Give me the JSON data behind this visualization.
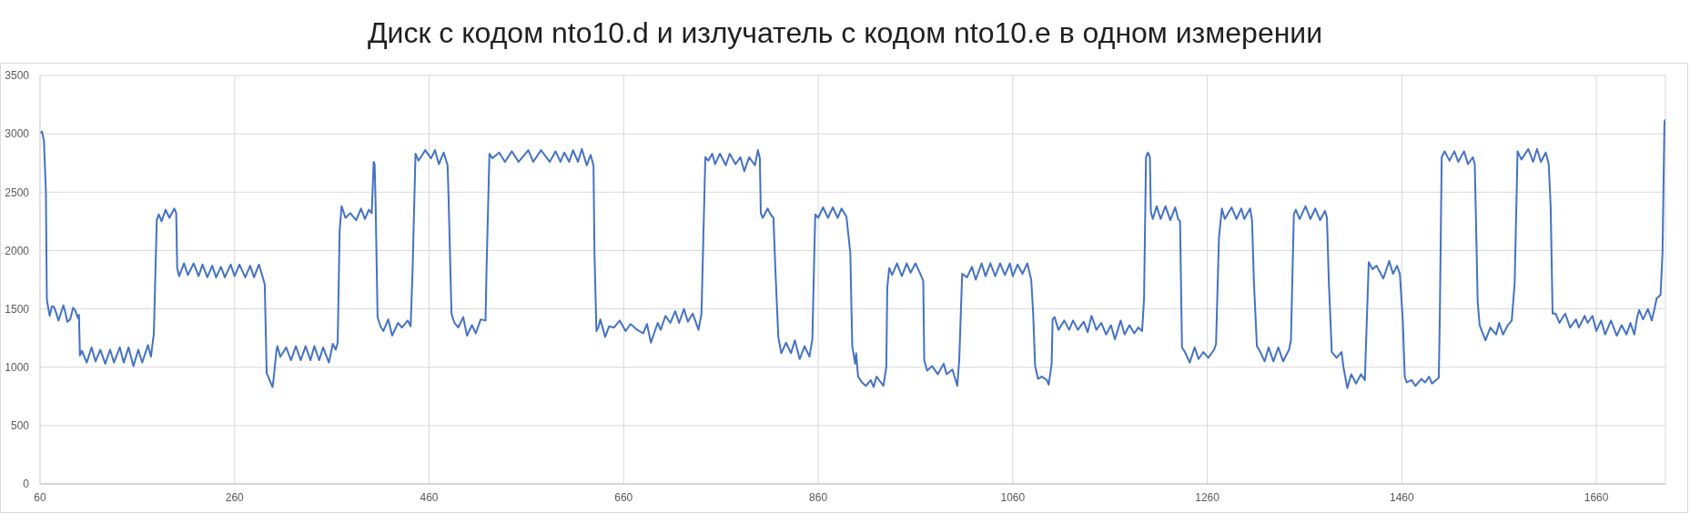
{
  "chart_data": {
    "type": "line",
    "title": "Диск с кодом nto10.d и излучатель с кодом nto10.e в одном измерении",
    "x": [
      60,
      62,
      64,
      66,
      67,
      69,
      70,
      72,
      74,
      76,
      79,
      84,
      86,
      88,
      91,
      94,
      96,
      99,
      100,
      101,
      103,
      108,
      113,
      117,
      122,
      127,
      132,
      136,
      142,
      146,
      151,
      156,
      161,
      165,
      171,
      174,
      177,
      180,
      182,
      185,
      189,
      193,
      198,
      200,
      201,
      203,
      208,
      212,
      218,
      223,
      227,
      232,
      237,
      241,
      246,
      250,
      256,
      260,
      265,
      271,
      276,
      280,
      285,
      289,
      291,
      293,
      296,
      299,
      300,
      303,
      304,
      307,
      313,
      318,
      323,
      328,
      333,
      338,
      342,
      347,
      351,
      357,
      361,
      364,
      366,
      368,
      370,
      374,
      379,
      385,
      390,
      394,
      398,
      401,
      403,
      404,
      405,
      407,
      410,
      413,
      418,
      422,
      428,
      432,
      438,
      441,
      443,
      446,
      449,
      453,
      456,
      462,
      466,
      470,
      475,
      479,
      480,
      483,
      486,
      490,
      495,
      499,
      504,
      508,
      513,
      518,
      519,
      522,
      525,
      532,
      538,
      545,
      552,
      562,
      567,
      575,
      584,
      590,
      595,
      599,
      604,
      608,
      613,
      617,
      622,
      626,
      629,
      630,
      632,
      634,
      636,
      641,
      645,
      650,
      656,
      662,
      667,
      674,
      680,
      684,
      688,
      695,
      698,
      703,
      708,
      713,
      717,
      722,
      726,
      731,
      737,
      740,
      742,
      744,
      747,
      751,
      754,
      759,
      765,
      769,
      775,
      780,
      784,
      789,
      795,
      798,
      800,
      801,
      803,
      808,
      811,
      814,
      816,
      819,
      822,
      827,
      832,
      836,
      841,
      846,
      851,
      854,
      856,
      857,
      860,
      865,
      870,
      875,
      880,
      884,
      889,
      893,
      895,
      898,
      899,
      901,
      905,
      909,
      914,
      917,
      920,
      927,
      930,
      931,
      933,
      936,
      941,
      946,
      951,
      955,
      960,
      965,
      968,
      969,
      972,
      977,
      983,
      989,
      992,
      998,
      1003,
      1005,
      1008,
      1013,
      1018,
      1022,
      1028,
      1032,
      1037,
      1042,
      1047,
      1052,
      1057,
      1060,
      1065,
      1070,
      1075,
      1079,
      1081,
      1083,
      1086,
      1090,
      1095,
      1097,
      1100,
      1101,
      1103,
      1107,
      1113,
      1118,
      1122,
      1127,
      1133,
      1137,
      1141,
      1146,
      1151,
      1156,
      1161,
      1165,
      1171,
      1175,
      1180,
      1185,
      1189,
      1193,
      1195,
      1197,
      1199,
      1201,
      1202,
      1204,
      1208,
      1212,
      1217,
      1222,
      1227,
      1230,
      1232,
      1234,
      1237,
      1242,
      1247,
      1251,
      1256,
      1261,
      1267,
      1269,
      1272,
      1275,
      1278,
      1285,
      1290,
      1295,
      1298,
      1304,
      1306,
      1308,
      1311,
      1314,
      1319,
      1323,
      1328,
      1333,
      1338,
      1344,
      1346,
      1349,
      1351,
      1355,
      1361,
      1366,
      1371,
      1376,
      1381,
      1383,
      1385,
      1388,
      1393,
      1398,
      1400,
      1404,
      1408,
      1413,
      1418,
      1422,
      1424,
      1426,
      1430,
      1434,
      1441,
      1447,
      1451,
      1455,
      1458,
      1461,
      1463,
      1465,
      1470,
      1474,
      1480,
      1484,
      1488,
      1491,
      1498,
      1499,
      1501,
      1504,
      1509,
      1514,
      1518,
      1524,
      1528,
      1533,
      1535,
      1538,
      1540,
      1546,
      1551,
      1557,
      1560,
      1564,
      1569,
      1573,
      1576,
      1579,
      1583,
      1590,
      1595,
      1599,
      1603,
      1608,
      1611,
      1613,
      1615,
      1618,
      1622,
      1628,
      1633,
      1639,
      1642,
      1648,
      1651,
      1656,
      1660,
      1665,
      1669,
      1675,
      1681,
      1686,
      1691,
      1695,
      1699,
      1702,
      1704,
      1708,
      1713,
      1717,
      1720,
      1722,
      1726,
      1728,
      1730,
      1731
    ],
    "values": [
      3010,
      3020,
      2940,
      2510,
      1580,
      1480,
      1440,
      1520,
      1520,
      1480,
      1400,
      1530,
      1470,
      1390,
      1410,
      1510,
      1490,
      1420,
      1450,
      1100,
      1140,
      1040,
      1170,
      1050,
      1150,
      1030,
      1150,
      1040,
      1170,
      1040,
      1170,
      1010,
      1150,
      1040,
      1190,
      1090,
      1290,
      2260,
      2310,
      2250,
      2350,
      2280,
      2360,
      2320,
      1850,
      1780,
      1890,
      1790,
      1890,
      1780,
      1880,
      1770,
      1870,
      1770,
      1860,
      1770,
      1880,
      1780,
      1880,
      1770,
      1870,
      1770,
      1880,
      1770,
      1710,
      950,
      890,
      830,
      890,
      1140,
      1180,
      1090,
      1170,
      1060,
      1180,
      1060,
      1180,
      1060,
      1180,
      1060,
      1170,
      1040,
      1200,
      1150,
      1210,
      2170,
      2380,
      2280,
      2320,
      2260,
      2360,
      2270,
      2350,
      2320,
      2760,
      2740,
      2390,
      1430,
      1350,
      1310,
      1410,
      1270,
      1380,
      1340,
      1400,
      1350,
      1830,
      2830,
      2770,
      2820,
      2860,
      2790,
      2860,
      2740,
      2840,
      2730,
      2450,
      1460,
      1380,
      1340,
      1430,
      1270,
      1360,
      1290,
      1410,
      1400,
      1830,
      2830,
      2790,
      2840,
      2760,
      2850,
      2760,
      2860,
      2760,
      2860,
      2760,
      2850,
      2760,
      2840,
      2760,
      2860,
      2760,
      2870,
      2730,
      2820,
      2730,
      1980,
      1310,
      1340,
      1410,
      1260,
      1350,
      1340,
      1400,
      1310,
      1370,
      1320,
      1290,
      1370,
      1210,
      1380,
      1320,
      1440,
      1380,
      1480,
      1380,
      1500,
      1390,
      1460,
      1320,
      1460,
      2140,
      2800,
      2770,
      2830,
      2740,
      2830,
      2730,
      2830,
      2740,
      2800,
      2680,
      2800,
      2730,
      2860,
      2790,
      2320,
      2280,
      2360,
      2310,
      2280,
      1830,
      1260,
      1120,
      1210,
      1120,
      1230,
      1070,
      1180,
      1090,
      1240,
      1980,
      2310,
      2280,
      2370,
      2280,
      2370,
      2280,
      2360,
      2290,
      1980,
      1180,
      1030,
      1120,
      920,
      870,
      840,
      890,
      830,
      920,
      840,
      1000,
      1680,
      1850,
      1790,
      1890,
      1780,
      1890,
      1810,
      1890,
      1800,
      1740,
      1060,
      970,
      1010,
      940,
      1030,
      940,
      980,
      840,
      1060,
      1800,
      1770,
      1860,
      1750,
      1890,
      1780,
      1890,
      1780,
      1890,
      1790,
      1890,
      1780,
      1880,
      1800,
      1890,
      1750,
      1460,
      1010,
      900,
      920,
      890,
      850,
      1030,
      1410,
      1430,
      1320,
      1400,
      1320,
      1400,
      1320,
      1390,
      1300,
      1440,
      1320,
      1380,
      1280,
      1360,
      1240,
      1400,
      1280,
      1360,
      1290,
      1340,
      1310,
      1590,
      2800,
      2840,
      2800,
      2330,
      2270,
      2380,
      2270,
      2380,
      2260,
      2370,
      2270,
      2250,
      1170,
      1130,
      1040,
      1170,
      1070,
      1130,
      1080,
      1150,
      1200,
      2110,
      2360,
      2270,
      2370,
      2270,
      2360,
      2270,
      2360,
      2260,
      1720,
      1180,
      1140,
      1050,
      1170,
      1050,
      1170,
      1050,
      1150,
      1230,
      2310,
      2350,
      2270,
      2380,
      2270,
      2360,
      2260,
      2340,
      2280,
      1720,
      1130,
      1080,
      1130,
      1000,
      820,
      940,
      860,
      940,
      890,
      1400,
      1900,
      1840,
      1870,
      1760,
      1910,
      1800,
      1870,
      1800,
      1400,
      920,
      870,
      890,
      840,
      900,
      870,
      920,
      860,
      910,
      1400,
      2800,
      2850,
      2770,
      2850,
      2760,
      2850,
      2740,
      2800,
      2740,
      1560,
      1360,
      1230,
      1340,
      1280,
      1380,
      1280,
      1360,
      1400,
      1720,
      2850,
      2780,
      2870,
      2760,
      2870,
      2760,
      2840,
      2740,
      2380,
      1460,
      1460,
      1380,
      1460,
      1340,
      1410,
      1340,
      1440,
      1380,
      1440,
      1310,
      1400,
      1280,
      1400,
      1270,
      1360,
      1280,
      1380,
      1280,
      1430,
      1490,
      1410,
      1500,
      1400,
      1510,
      1590,
      1620,
      1980,
      3100,
      3120
    ],
    "color": "#4472c4",
    "xlim": [
      60,
      1731
    ],
    "xticks": [
      60,
      260,
      460,
      660,
      860,
      1060,
      1260,
      1460,
      1660
    ],
    "ylim": [
      0,
      3500
    ],
    "yticks": [
      0,
      500,
      1000,
      1500,
      2000,
      2500,
      3000,
      3500
    ],
    "grid": true
  }
}
